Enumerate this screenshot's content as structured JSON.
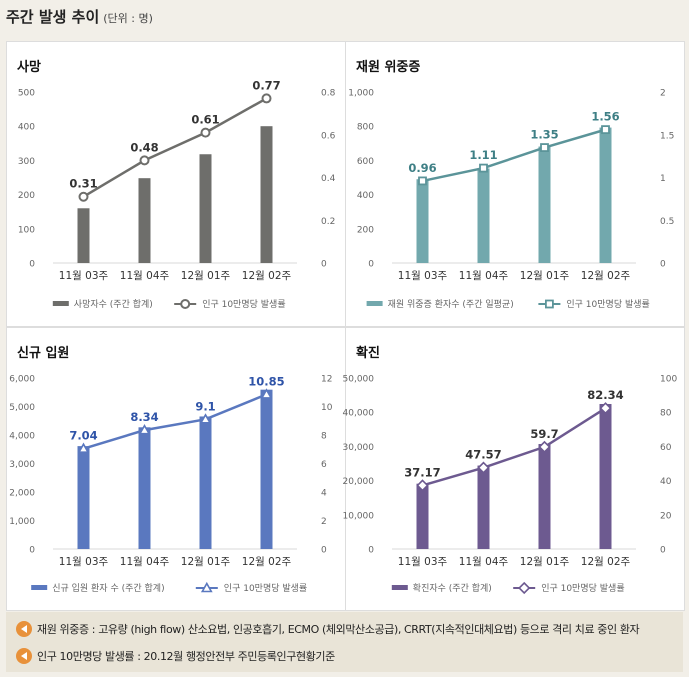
{
  "header": {
    "title": "주간 발생 추이",
    "unit": "(단위 : 명)"
  },
  "chart_data": [
    {
      "type": "bar+line",
      "title": "사망",
      "categories": [
        "11월 03주",
        "11월 04주",
        "12월 01주",
        "12월 02주"
      ],
      "bar": {
        "name": "사망자수 (주간 합계)",
        "values": [
          160,
          248,
          318,
          400
        ],
        "color": "#6e6e6b"
      },
      "line": {
        "name": "인구 10만명당 발생률",
        "values": [
          0.31,
          0.48,
          0.61,
          0.77
        ],
        "color": "#6e6e6b"
      },
      "y_left": {
        "min": 0,
        "max": 500,
        "ticks": [
          "0",
          "100",
          "200",
          "300",
          "400",
          "500"
        ]
      },
      "y_right": {
        "min": 0,
        "max": 0.8,
        "ticks": [
          "0",
          "0.2",
          "0.4",
          "0.6",
          "0.8"
        ]
      },
      "marker": "circle",
      "labels": [
        "0.31",
        "0.48",
        "0.61",
        "0.77"
      ]
    },
    {
      "type": "bar+line",
      "title": "재원 위중증",
      "categories": [
        "11월 03주",
        "11월 04주",
        "12월 01주",
        "12월 02주"
      ],
      "bar": {
        "name": "재원 위중증 환자수 (주간 일평균)",
        "values": [
          490,
          553,
          681,
          792
        ],
        "color": "#72a8ad"
      },
      "line": {
        "name": "인구 10만명당 발생률",
        "values": [
          0.96,
          1.11,
          1.35,
          1.56
        ],
        "color": "#5b9499"
      },
      "y_left": {
        "min": 0,
        "max": 1000,
        "ticks": [
          "0",
          "200",
          "400",
          "600",
          "800",
          "1,000"
        ]
      },
      "y_right": {
        "min": 0,
        "max": 2,
        "ticks": [
          "0",
          "0.5",
          "1",
          "1.5",
          "2"
        ]
      },
      "marker": "square",
      "labels": [
        "0.96",
        "1.11",
        "1.35",
        "1.56"
      ]
    },
    {
      "type": "bar+line",
      "title": "신규 입원",
      "categories": [
        "11월 03주",
        "11월 04주",
        "12월 01주",
        "12월 02주"
      ],
      "bar": {
        "name": "신규 입원 환자 수 (주간 합계)",
        "values": [
          3610,
          4270,
          4650,
          5590
        ],
        "color": "#5a78bf"
      },
      "line": {
        "name": "인구 10만명당 발생률",
        "values": [
          7.04,
          8.34,
          9.1,
          10.85
        ],
        "color": "#5a78bf"
      },
      "y_left": {
        "min": 0,
        "max": 6000,
        "ticks": [
          "0",
          "1,000",
          "2,000",
          "3,000",
          "4,000",
          "5,000",
          "6,000"
        ]
      },
      "y_right": {
        "min": 0,
        "max": 12,
        "ticks": [
          "0",
          "2",
          "4",
          "6",
          "8",
          "10",
          "12"
        ]
      },
      "marker": "triangle",
      "labels": [
        "7.04",
        "8.34",
        "9.1",
        "10.85"
      ]
    },
    {
      "type": "bar+line",
      "title": "확진",
      "categories": [
        "11월 03주",
        "11월 04주",
        "12월 01주",
        "12월 02주"
      ],
      "bar": {
        "name": "확진자수 (주간 합계)",
        "values": [
          19100,
          24400,
          30700,
          42400
        ],
        "color": "#6d5a90"
      },
      "line": {
        "name": "인구 10만명당 발생률",
        "values": [
          37.17,
          47.57,
          59.7,
          82.34
        ],
        "color": "#6d5a90"
      },
      "y_left": {
        "min": 0,
        "max": 50000,
        "ticks": [
          "0",
          "10,000",
          "20,000",
          "30,000",
          "40,000",
          "50,000"
        ]
      },
      "y_right": {
        "min": 0,
        "max": 100,
        "ticks": [
          "0",
          "20",
          "40",
          "60",
          "80",
          "100"
        ]
      },
      "marker": "diamond",
      "labels": [
        "37.17",
        "47.57",
        "59.7",
        "82.34"
      ]
    }
  ],
  "notes": [
    "재원 위중증 : 고유량 (high flow) 산소요법, 인공호흡기, ECMO (체외막산소공급), CRRT(지속적인대체요법) 등으로 격리 치료 중인 환자",
    "인구 10만명당 발생률 : 20.12월 행정안전부 주민등록인구현황기준"
  ]
}
